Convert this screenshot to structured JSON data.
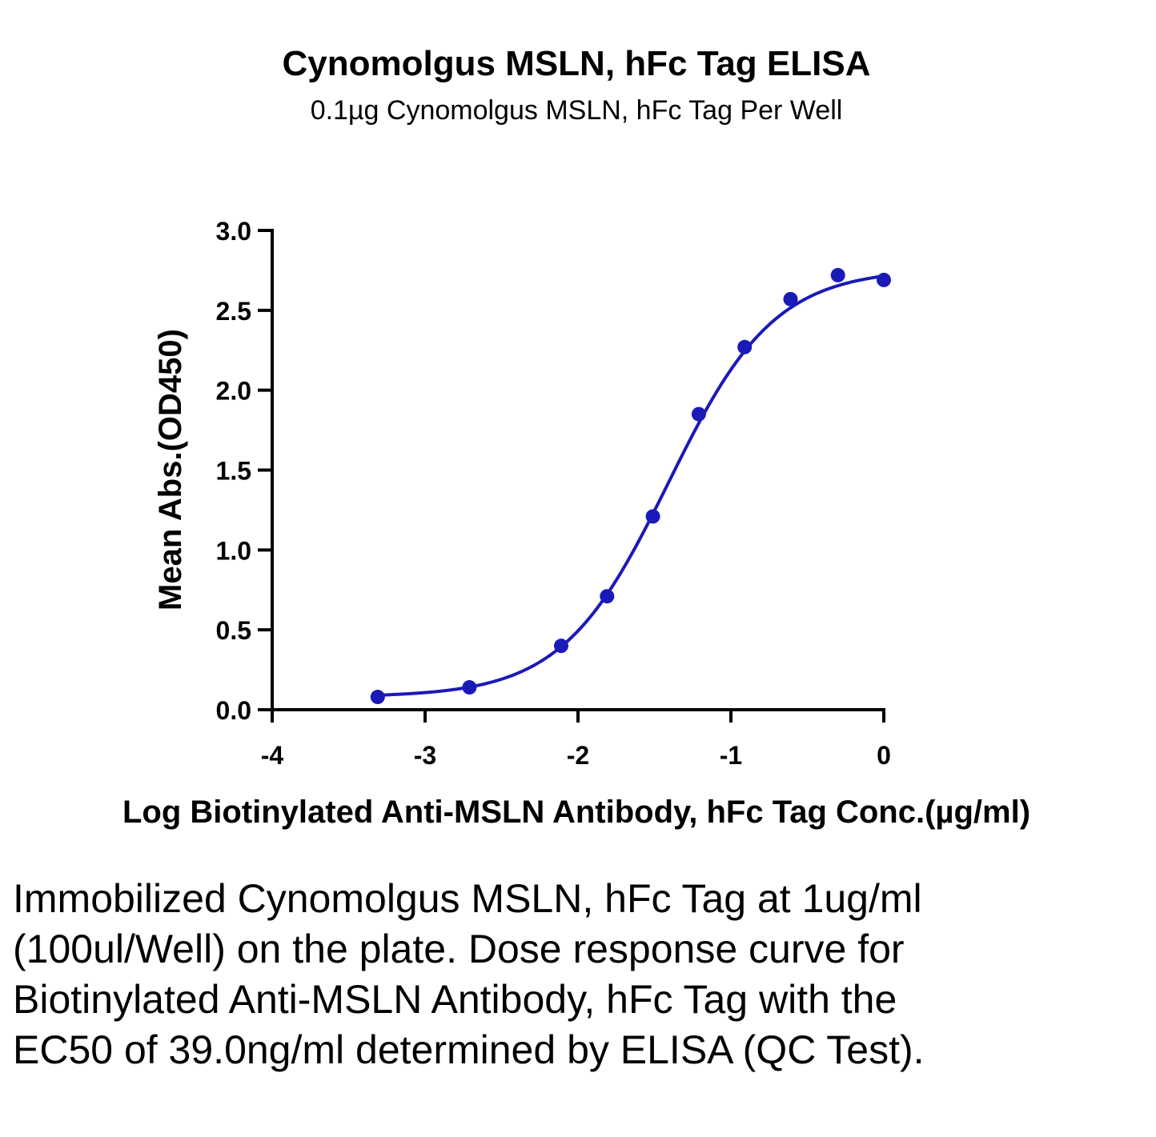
{
  "chart_data": {
    "type": "scatter",
    "title": "Cynomolgus MSLN, hFc Tag ELISA",
    "subtitle": "0.1µg Cynomolgus MSLN, hFc Tag Per Well",
    "xlabel": "Log Biotinylated Anti-MSLN Antibody, hFc Tag Conc.(µg/ml)",
    "ylabel": "Mean Abs.(OD450)",
    "xlim": [
      -4,
      0
    ],
    "ylim": [
      0,
      3.0
    ],
    "x_ticks": [
      "-4",
      "-3",
      "-2",
      "-1",
      "0"
    ],
    "y_ticks": [
      "0.0",
      "0.5",
      "1.0",
      "1.5",
      "2.0",
      "2.5",
      "3.0"
    ],
    "grid": false,
    "color": "#1a1ab8",
    "series": [
      {
        "x": [
          -3.31,
          -2.71,
          -2.11,
          -1.81,
          -1.51,
          -1.21,
          -0.91,
          -0.61,
          -0.3,
          0.0
        ],
        "y": [
          0.08,
          0.14,
          0.4,
          0.71,
          1.21,
          1.85,
          2.27,
          2.57,
          2.72,
          2.69
        ]
      }
    ],
    "fit": {
      "model": "4PL",
      "bottom": 0.08,
      "top": 2.76,
      "log_ec50": -1.409,
      "hill": 1.25
    }
  },
  "caption": "Immobilized Cynomolgus MSLN, hFc Tag at 1ug/ml (100ul/Well) on the plate. Dose response curve for Biotinylated Anti-MSLN Antibody, hFc Tag with the EC50 of 39.0ng/ml determined by ELISA (QC Test)."
}
